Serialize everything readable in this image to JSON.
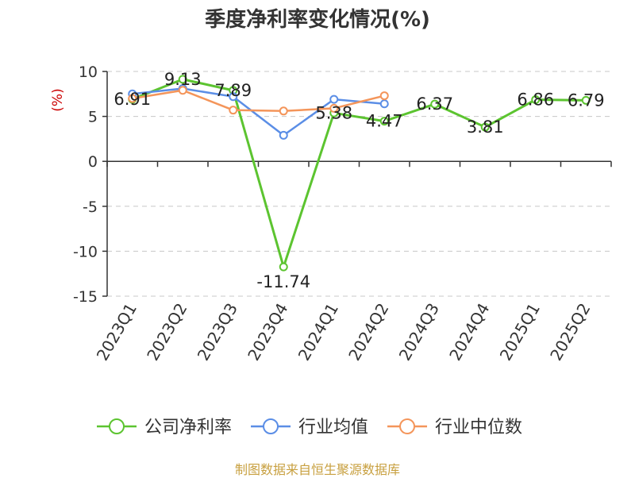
{
  "title": "季度净利率变化情况(%)",
  "source": "制图数据来自恒生聚源数据库",
  "chart_data": {
    "type": "line",
    "title": "季度净利率变化情况(%)",
    "ylabel": "(%)",
    "ylim": [
      -15,
      10
    ],
    "yticks": [
      10,
      5,
      0,
      -5,
      -10,
      -15
    ],
    "grid": true,
    "legend_position": "bottom",
    "categories": [
      "2023Q1",
      "2023Q2",
      "2023Q3",
      "2023Q4",
      "2024Q1",
      "2024Q2",
      "2024Q3",
      "2024Q4",
      "2025Q1",
      "2025Q2"
    ],
    "series": [
      {
        "name": "公司净利率",
        "color": "#5cc430",
        "values": [
          6.91,
          9.13,
          7.89,
          -11.74,
          5.38,
          4.47,
          6.37,
          3.81,
          6.86,
          6.79
        ],
        "labels": [
          "6.91",
          "9.13",
          "7.89",
          "-11.74",
          "5.38",
          "4.47",
          "6.37",
          "3.81",
          "6.86",
          "6.79"
        ]
      },
      {
        "name": "行业均值",
        "color": "#5b8ee6",
        "values": [
          7.5,
          8.1,
          7.2,
          2.9,
          6.9,
          6.4,
          null,
          null,
          null,
          null
        ]
      },
      {
        "name": "行业中位数",
        "color": "#f4955a",
        "values": [
          7.0,
          7.9,
          5.7,
          5.6,
          5.9,
          7.3,
          null,
          null,
          null,
          null
        ]
      }
    ]
  }
}
